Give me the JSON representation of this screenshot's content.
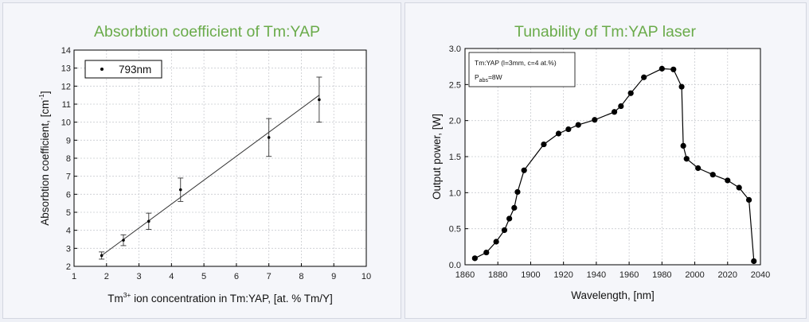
{
  "colors": {
    "title": "#6aab4a",
    "background": "#eef0f6",
    "panel": "#f5f6fa",
    "grid": "#c9cbd0"
  },
  "chart_data": [
    {
      "type": "scatter",
      "title": "Absorbtion coefficient of Tm:YAP",
      "xlabel_parts": [
        "Tm",
        "3+",
        " ion concentration in Tm:YAP, [at. % Tm/Y]"
      ],
      "ylabel_parts": [
        "Absorbtion coefficient, [cm",
        "-1",
        "]"
      ],
      "xlim": [
        1,
        10
      ],
      "ylim": [
        2,
        14
      ],
      "xticks": [
        1,
        2,
        3,
        4,
        5,
        6,
        7,
        8,
        9,
        10
      ],
      "yticks": [
        2,
        3,
        4,
        5,
        6,
        7,
        8,
        9,
        10,
        11,
        12,
        13,
        14
      ],
      "grid": true,
      "legend_position": "top-left",
      "series": [
        {
          "name": "793nm",
          "x": [
            1.85,
            2.52,
            3.3,
            4.28,
            7.0,
            8.55
          ],
          "y": [
            2.6,
            3.45,
            4.5,
            6.25,
            9.15,
            11.25
          ],
          "err": [
            0.2,
            0.3,
            0.45,
            0.65,
            1.05,
            1.25
          ]
        }
      ],
      "fit_line": {
        "x": [
          1.85,
          8.55
        ],
        "y": [
          2.6,
          11.5
        ]
      }
    },
    {
      "type": "line",
      "title": "Tunability of Tm:YAP laser",
      "xlabel": "Wavelength, [nm]",
      "ylabel": "Output power, [W]",
      "xlim": [
        1860,
        2040
      ],
      "ylim": [
        0.0,
        3.0
      ],
      "xticks": [
        1860,
        1880,
        1900,
        1920,
        1940,
        1960,
        1980,
        2000,
        2020,
        2040
      ],
      "yticks": [
        "0.0",
        "0.5",
        "1.0",
        "1.5",
        "2.0",
        "2.5",
        "3.0"
      ],
      "grid": true,
      "annotation_lines": [
        {
          "text": "Tm:YAP (l=3mm, c=4 at.%)"
        },
        {
          "parts": [
            "P",
            "abs",
            "=8W"
          ]
        }
      ],
      "series": [
        {
          "x": [
            1866,
            1873,
            1879,
            1884,
            1887,
            1890,
            1892,
            1896,
            1908,
            1917,
            1923,
            1929,
            1939,
            1951,
            1955,
            1961,
            1969,
            1980,
            1987,
            1992,
            1993,
            1995,
            2002,
            2011,
            2020,
            2027,
            2033,
            2036
          ],
          "y": [
            0.09,
            0.17,
            0.32,
            0.48,
            0.64,
            0.79,
            1.01,
            1.31,
            1.67,
            1.82,
            1.88,
            1.94,
            2.01,
            2.12,
            2.2,
            2.38,
            2.6,
            2.72,
            2.71,
            2.47,
            1.65,
            1.47,
            1.34,
            1.25,
            1.17,
            1.07,
            0.9,
            0.05
          ]
        }
      ]
    }
  ]
}
